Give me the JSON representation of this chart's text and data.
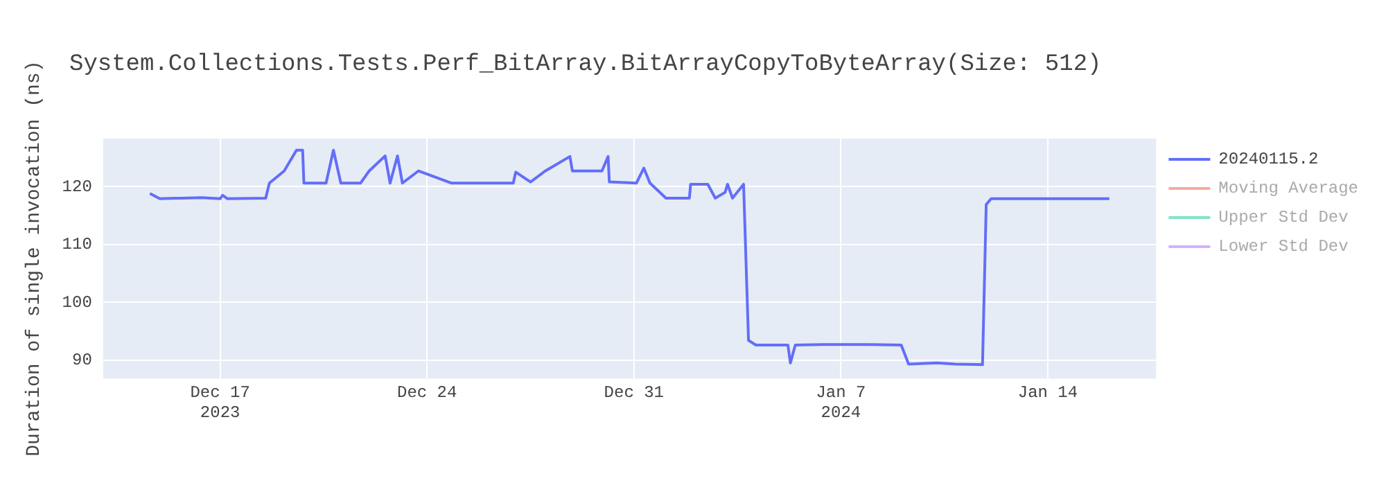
{
  "chart_data": {
    "type": "line",
    "title": "System.Collections.Tests.Perf_BitArray.BitArrayCopyToByteArray(Size: 512)",
    "ylabel": "Duration of single invocation (ns)",
    "x": [
      "2023-12-14T15:00",
      "2023-12-14T23:00",
      "2023-12-16T09:00",
      "2023-12-17T00:00",
      "2023-12-17T02:00",
      "2023-12-17T06:00",
      "2023-12-18T13:00",
      "2023-12-18T16:00",
      "2023-12-19T04:00",
      "2023-12-19T14:00",
      "2023-12-19T19:00",
      "2023-12-19T20:00",
      "2023-12-20T14:00",
      "2023-12-20T20:00",
      "2023-12-21T02:00",
      "2023-12-21T18:00",
      "2023-12-22T01:00",
      "2023-12-22T14:00",
      "2023-12-22T18:00",
      "2023-12-23T00:00",
      "2023-12-23T04:00",
      "2023-12-23T17:00",
      "2023-12-24T20:00",
      "2023-12-26T22:00",
      "2023-12-27T00:00",
      "2023-12-27T12:00",
      "2023-12-28T00:00",
      "2023-12-28T20:00",
      "2023-12-28T22:00",
      "2023-12-29T22:00",
      "2023-12-30T03:00",
      "2023-12-30T04:00",
      "2023-12-31T02:00",
      "2023-12-31T08:00",
      "2023-12-31T13:00",
      "2024-01-01T02:00",
      "2024-01-01T21:00",
      "2024-01-01T22:00",
      "2024-01-02T12:00",
      "2024-01-02T18:00",
      "2024-01-03T02:00",
      "2024-01-03T04:00",
      "2024-01-03T08:00",
      "2024-01-03T17:00",
      "2024-01-03T21:00",
      "2024-01-04T03:00",
      "2024-01-05T05:00",
      "2024-01-05T07:00",
      "2024-01-05T11:00",
      "2024-01-06T10:00",
      "2024-01-07T21:00",
      "2024-01-09T01:00",
      "2024-01-09T07:00",
      "2024-01-10T06:00",
      "2024-01-10T21:00",
      "2024-01-11T19:00",
      "2024-01-11T22:00",
      "2024-01-12T02:00",
      "2024-01-16T02:00"
    ],
    "series": [
      {
        "name": "20240115.2",
        "color": "#636efa",
        "values": [
          118.8,
          117.9,
          118.1,
          117.9,
          118.5,
          117.9,
          118.0,
          120.6,
          122.7,
          126.3,
          126.3,
          120.6,
          120.6,
          126.3,
          120.6,
          120.6,
          122.7,
          125.3,
          120.6,
          125.3,
          120.6,
          122.7,
          120.6,
          120.6,
          122.5,
          120.8,
          122.7,
          125.2,
          122.7,
          122.7,
          125.2,
          120.8,
          120.6,
          123.2,
          120.6,
          118.0,
          118.0,
          120.4,
          120.4,
          118.0,
          119.0,
          120.4,
          118.0,
          120.4,
          93.4,
          92.6,
          92.6,
          89.5,
          92.6,
          92.7,
          92.7,
          92.6,
          89.3,
          89.5,
          89.3,
          89.2,
          116.9,
          117.9,
          117.9
        ]
      },
      {
        "name": "Moving Average",
        "color": "#ef553b",
        "values": [
          null,
          null,
          null,
          null,
          null,
          null,
          null,
          null,
          null,
          null,
          null,
          null,
          null,
          null,
          null,
          null,
          null,
          null,
          null,
          null,
          null,
          null,
          null,
          null,
          null,
          null,
          null,
          null,
          null,
          null,
          null,
          null,
          null,
          null,
          null,
          null,
          null,
          null,
          null,
          null,
          null,
          null,
          null,
          null,
          null,
          null,
          null,
          null,
          null,
          null,
          null,
          null,
          null,
          null,
          null,
          null,
          null,
          null,
          null
        ]
      },
      {
        "name": "Upper Std Dev",
        "color": "#00cc96",
        "values": [
          null,
          null,
          null,
          null,
          null,
          null,
          null,
          null,
          null,
          null,
          null,
          null,
          null,
          null,
          null,
          null,
          null,
          null,
          null,
          null,
          null,
          null,
          null,
          null,
          null,
          null,
          null,
          null,
          null,
          null,
          null,
          null,
          null,
          null,
          null,
          null,
          null,
          null,
          null,
          null,
          null,
          null,
          null,
          null,
          null,
          null,
          null,
          null,
          null,
          null,
          null,
          null,
          null,
          null,
          null,
          null,
          null,
          null,
          null
        ]
      },
      {
        "name": "Lower Std Dev",
        "color": "#ab63fa",
        "values": [
          null,
          null,
          null,
          null,
          null,
          null,
          null,
          null,
          null,
          null,
          null,
          null,
          null,
          null,
          null,
          null,
          null,
          null,
          null,
          null,
          null,
          null,
          null,
          null,
          null,
          null,
          null,
          null,
          null,
          null,
          null,
          null,
          null,
          null,
          null,
          null,
          null,
          null,
          null,
          null,
          null,
          null,
          null,
          null,
          null,
          null,
          null,
          null,
          null,
          null,
          null,
          null,
          null,
          null,
          null,
          null,
          null,
          null,
          null
        ]
      }
    ],
    "xlim": [
      "2023-12-13T01:00",
      "2024-01-17T16:00"
    ],
    "xticks": [
      {
        "value": "2023-12-17",
        "label": "Dec 17\n2023"
      },
      {
        "value": "2023-12-24",
        "label": "Dec 24"
      },
      {
        "value": "2023-12-31",
        "label": "Dec 31"
      },
      {
        "value": "2024-01-07",
        "label": "Jan 7\n2024"
      },
      {
        "value": "2024-01-14",
        "label": "Jan 14"
      }
    ],
    "ylim": [
      86.8,
      128.3
    ],
    "yticks": [
      90,
      100,
      110,
      120
    ],
    "grid": true,
    "legend": "top right",
    "marker": "none",
    "line_style": "solid"
  }
}
